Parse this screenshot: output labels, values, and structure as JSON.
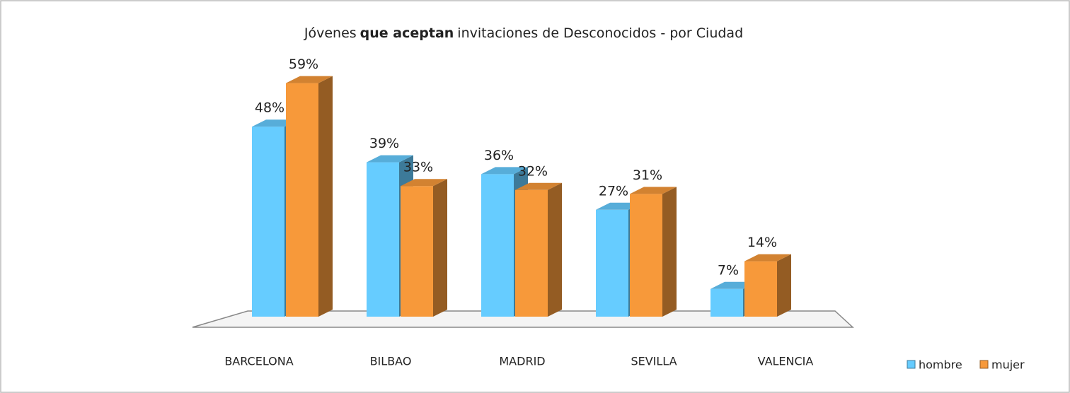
{
  "chart_data": {
    "type": "bar3d",
    "title": [
      "Jóvenes",
      "que aceptan",
      "invitaciones de Desconocidos - por Ciudad"
    ],
    "title_bold": [
      false,
      true,
      false
    ],
    "categories": [
      "BARCELONA",
      "BILBAO",
      "MADRID",
      "SEVILLA",
      "VALENCIA"
    ],
    "series": [
      {
        "name": "hombre",
        "color": "#66ccff",
        "values": [
          48,
          39,
          36,
          27,
          7
        ],
        "value_labels": [
          "48%",
          "39%",
          "36%",
          "27%",
          "7%"
        ]
      },
      {
        "name": "mujer",
        "color": "#f7993a",
        "values": [
          59,
          33,
          32,
          31,
          14
        ],
        "value_labels": [
          "59%",
          "33%",
          "32%",
          "31%",
          "14%"
        ]
      }
    ],
    "legend": "bottom-right"
  }
}
